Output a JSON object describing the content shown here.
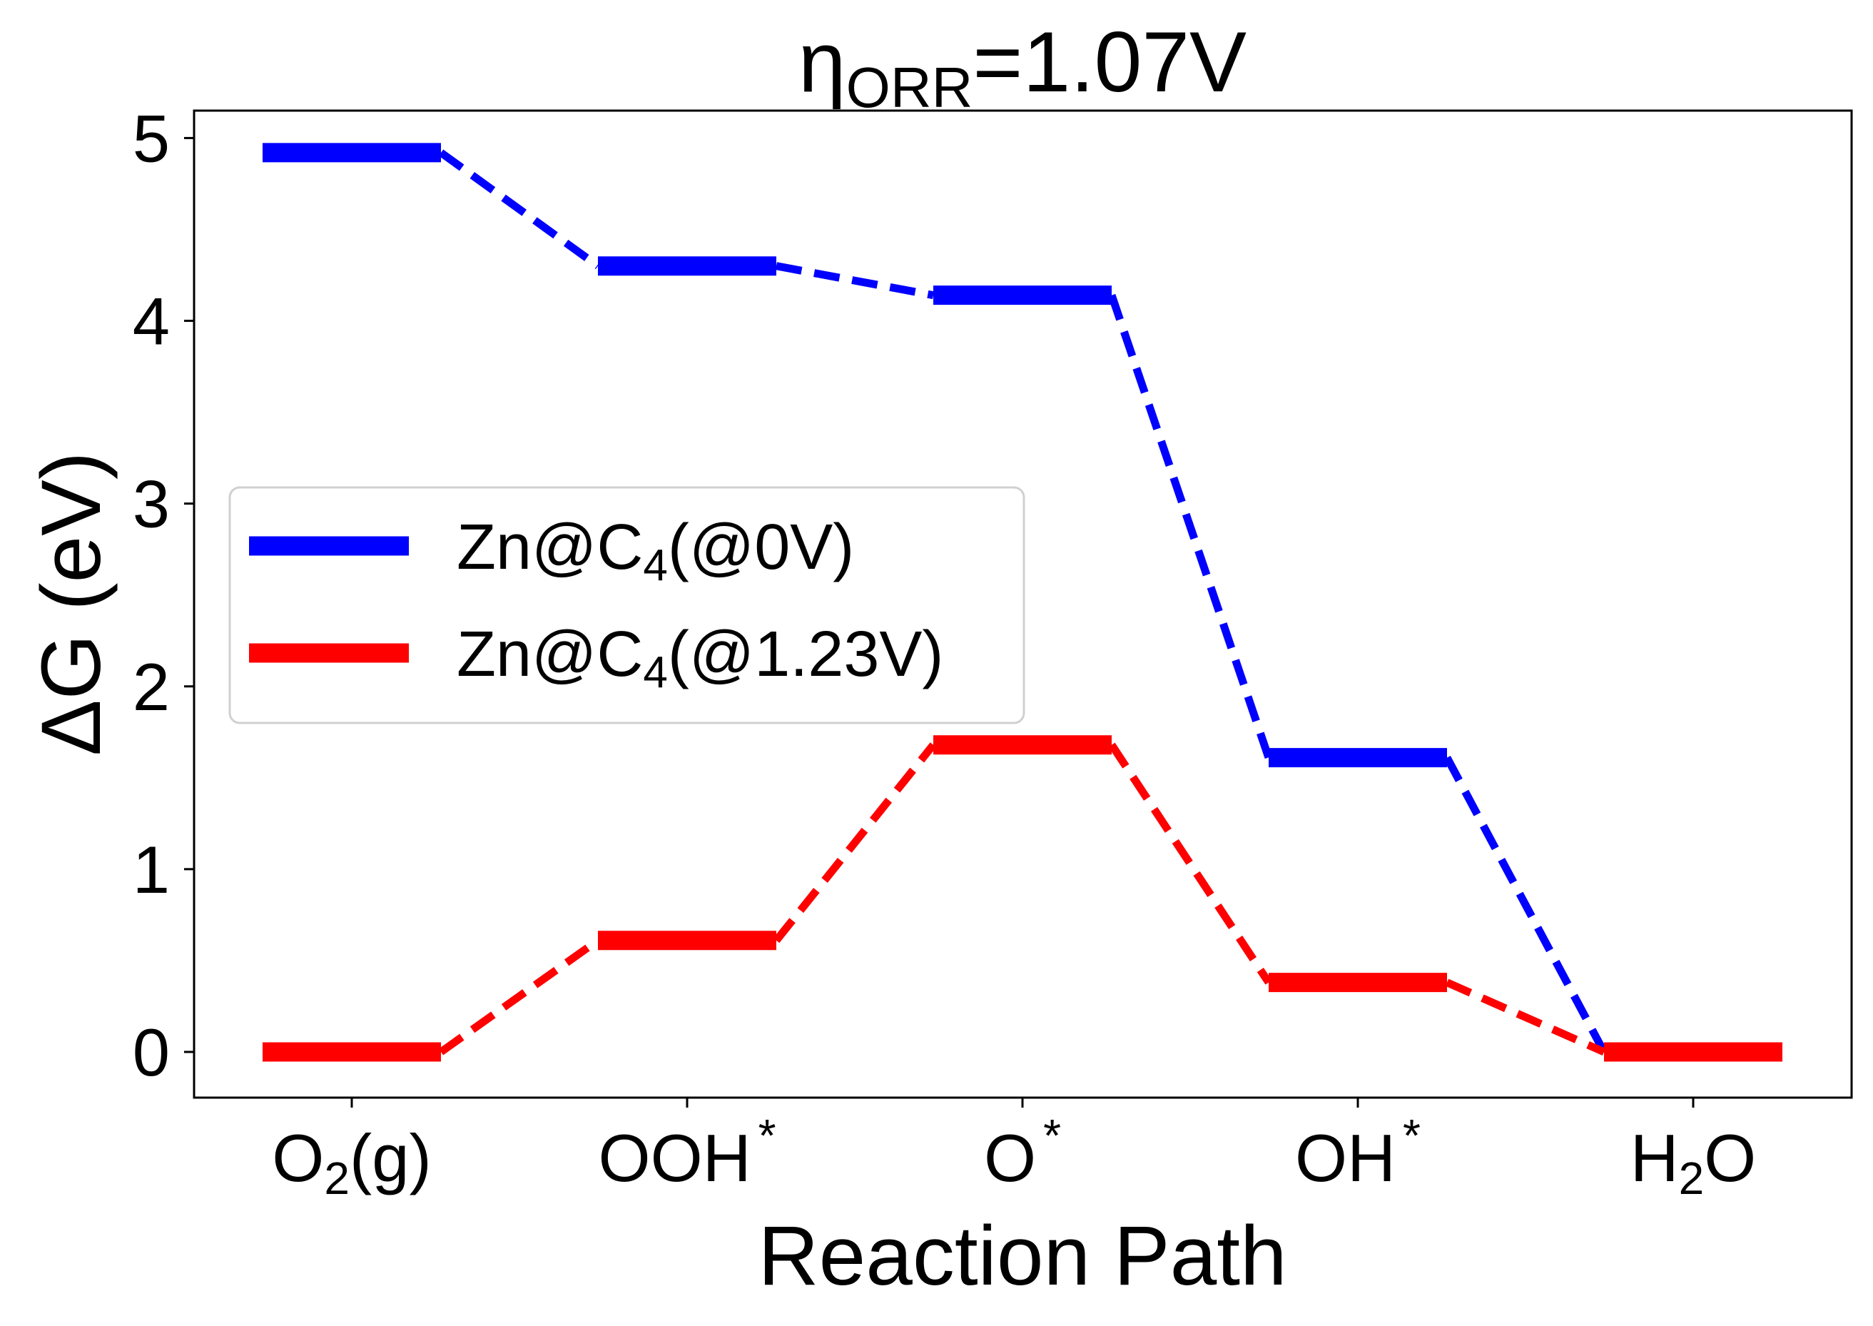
{
  "chart_data": {
    "type": "line",
    "title": {
      "symbol": "η",
      "subscript": "ORR",
      "rest": "=1.07V"
    },
    "xlabel": "Reaction Path",
    "ylabel": "ΔG (eV)",
    "ylim": [
      -0.25,
      5.15
    ],
    "y_ticks": [
      "0",
      "1",
      "2",
      "3",
      "4",
      "5"
    ],
    "categories": [
      {
        "main": "O",
        "sub": "2",
        "after": "(g)",
        "sup": ""
      },
      {
        "main": "OOH",
        "sub": "",
        "after": "",
        "sup": "*"
      },
      {
        "main": "O",
        "sub": "",
        "after": "",
        "sup": "*"
      },
      {
        "main": "OH",
        "sub": "",
        "after": "",
        "sup": "*"
      },
      {
        "main": "H",
        "sub": "2",
        "after": "O",
        "sup": ""
      }
    ],
    "series": [
      {
        "label_main": "Zn@C",
        "label_sub": "4",
        "label_rest": "(@0V)",
        "color": "#0000ff",
        "values": [
          4.92,
          4.3,
          4.14,
          1.61,
          0.0
        ]
      },
      {
        "label_main": "Zn@C",
        "label_sub": "4",
        "label_rest": "(@1.23V)",
        "color": "#ff0000",
        "values": [
          0.0,
          0.61,
          1.68,
          0.38,
          0.0
        ]
      }
    ],
    "grid": false,
    "legend_position": "center-left"
  }
}
